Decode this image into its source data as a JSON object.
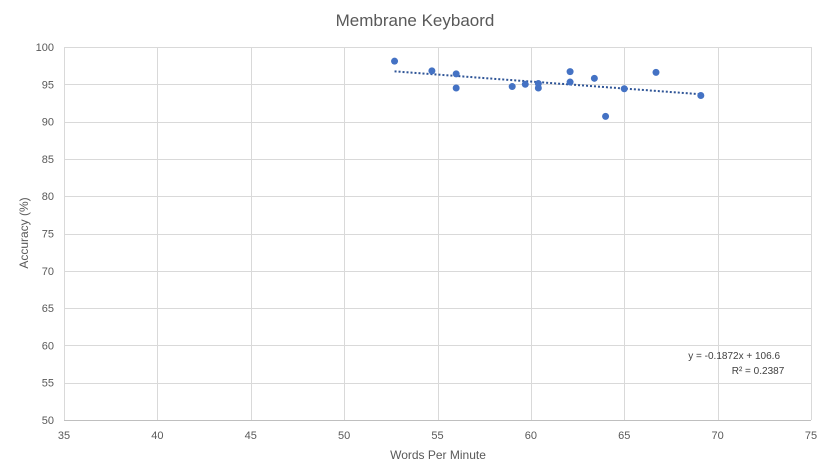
{
  "chart_data": {
    "type": "scatter",
    "title": "Membrane Keybaord",
    "xlabel": "Words Per Minute",
    "ylabel": "Accuracy (%)",
    "xlim": [
      35,
      75
    ],
    "ylim": [
      50,
      100
    ],
    "xticks": [
      "35",
      "40",
      "45",
      "50",
      "55",
      "60",
      "65",
      "70",
      "75"
    ],
    "yticks": [
      "50",
      "55",
      "60",
      "65",
      "70",
      "75",
      "80",
      "85",
      "90",
      "95",
      "100"
    ],
    "grid": true,
    "marker_color": "#4472C4",
    "trendline_color": "#2F5597",
    "series": [
      {
        "points": [
          {
            "x": 52.7,
            "y": 98.1
          },
          {
            "x": 54.7,
            "y": 96.8
          },
          {
            "x": 56.0,
            "y": 96.4
          },
          {
            "x": 56.0,
            "y": 94.5
          },
          {
            "x": 59.0,
            "y": 94.7
          },
          {
            "x": 59.7,
            "y": 95.0
          },
          {
            "x": 60.4,
            "y": 95.1
          },
          {
            "x": 60.4,
            "y": 94.5
          },
          {
            "x": 62.1,
            "y": 96.7
          },
          {
            "x": 62.1,
            "y": 95.3
          },
          {
            "x": 63.4,
            "y": 95.8
          },
          {
            "x": 64.0,
            "y": 90.7
          },
          {
            "x": 65.0,
            "y": 94.4
          },
          {
            "x": 66.7,
            "y": 96.6
          },
          {
            "x": 69.1,
            "y": 93.5
          }
        ]
      }
    ],
    "trendline": {
      "slope": -0.1872,
      "intercept": 106.6,
      "x_range": [
        52.7,
        69.1
      ],
      "equation": "y = -0.1872x + 106.6",
      "r_squared": "R² = 0.2387"
    }
  }
}
